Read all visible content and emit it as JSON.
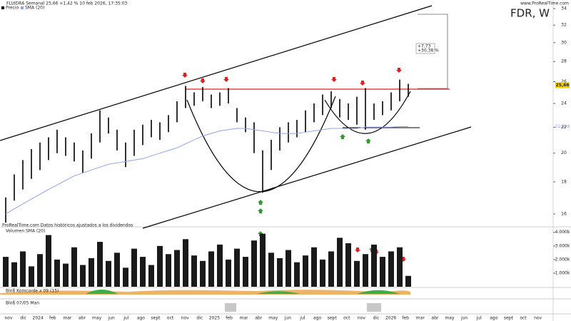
{
  "header": {
    "title": "FLUIDRA Semanal 25,66 +1,42 % 10 feb 2026, 17:35:03",
    "site": "www.ProRealTime.com",
    "symbol": "FDR, W",
    "legend_price": "Precio",
    "legend_sma": "SMA (20)",
    "watermark": "ProRealTime.com  Datos históricos ajustados a los dividendos",
    "box_line1": "+7,73",
    "box_line2": "+30,38 %",
    "ind1_title": "Bloß Komcorde x 09 (15)",
    "ind2_title": "Bloß 07/05 Man",
    "time_axis": [
      "nov",
      "dic",
      "2024",
      "feb",
      "mar",
      "abr",
      "may",
      "jun",
      "jul",
      "ago",
      "sept",
      "oct",
      "nov",
      "dic",
      "2025",
      "feb",
      "mar",
      "abr",
      "may",
      "jun",
      "jul",
      "ago",
      "sept",
      "oct",
      "nov",
      "dic",
      "2026",
      "feb",
      "mar",
      "abr",
      "may",
      "jun",
      "jul",
      "ago",
      "sept",
      "oct",
      "nov"
    ]
  },
  "chart_data": [
    {
      "type": "hilo",
      "log_scale": true,
      "color": "#000000",
      "sma_color": "#8fa3e8",
      "low": [
        15.5,
        16.8,
        17.5,
        18.2,
        18.8,
        19.5,
        20.0,
        19.8,
        19.4,
        18.6,
        19.6,
        20.8,
        21.5,
        20.2,
        19.0,
        19.8,
        20.6,
        21.2,
        21.0,
        21.6,
        22.4,
        23.6,
        23.8,
        24.2,
        23.6,
        23.8,
        24.0,
        22.4,
        21.6,
        20.0,
        17.3,
        18.8,
        20.2,
        20.8,
        21.2,
        21.6,
        22.4,
        23.0,
        23.6,
        22.8,
        22.6,
        22.2,
        21.8,
        22.6,
        23.0,
        23.4,
        24.2,
        24.6
      ],
      "high": [
        17.0,
        18.5,
        19.5,
        20.3,
        20.8,
        21.2,
        21.8,
        21.2,
        20.8,
        20.2,
        21.5,
        23.4,
        22.8,
        21.8,
        20.8,
        21.8,
        22.2,
        22.6,
        22.4,
        23.0,
        24.2,
        25.6,
        25.0,
        25.5,
        24.8,
        25.0,
        25.4,
        23.6,
        22.8,
        22.4,
        20.2,
        21.0,
        22.0,
        22.4,
        22.6,
        23.4,
        24.0,
        24.8,
        25.1,
        24.4,
        24.0,
        24.6,
        25.4,
        24.0,
        24.2,
        25.0,
        26.2,
        25.8
      ],
      "sma": [
        16.0,
        16.3,
        16.6,
        16.9,
        17.2,
        17.5,
        17.8,
        18.1,
        18.4,
        18.6,
        18.8,
        19.0,
        19.2,
        19.3,
        19.4,
        19.5,
        19.6,
        19.8,
        20.0,
        20.2,
        20.4,
        20.7,
        21.0,
        21.3,
        21.5,
        21.7,
        21.8,
        21.9,
        21.9,
        21.8,
        21.7,
        21.6,
        21.5,
        21.5,
        21.5,
        21.6,
        21.7,
        21.8,
        21.9,
        21.9,
        21.9,
        21.9,
        22.0,
        22.0,
        22.0,
        22.0,
        22.05,
        22.048
      ],
      "sma_label": "22,048",
      "last_price": 25.66,
      "last_price_label": "25,66",
      "ylim": [
        15.3,
        35
      ],
      "yticks": [
        16,
        18,
        20,
        22,
        24,
        26,
        28,
        30,
        32,
        34
      ]
    },
    {
      "type": "bar",
      "title": "Volumen",
      "legend": "SMA (20)",
      "color": "#1a1a1a",
      "values": [
        2200,
        1800,
        2600,
        1500,
        2400,
        3800,
        2000,
        1700,
        2900,
        1600,
        2100,
        3300,
        1900,
        2500,
        1400,
        2800,
        2200,
        1600,
        3000,
        2400,
        2700,
        3500,
        2300,
        1900,
        2600,
        3100,
        2000,
        2800,
        2200,
        3400,
        3900,
        2500,
        2100,
        2700,
        1800,
        2300,
        2900,
        2000,
        2600,
        3600,
        3200,
        1900,
        2400,
        3100,
        2200,
        2600,
        2900,
        800
      ],
      "ylim": [
        0,
        4300
      ],
      "yticks": [
        {
          "value": 1000,
          "label": "1.000k"
        },
        {
          "value": 2000,
          "label": "2.000k"
        },
        {
          "value": 3000,
          "label": "3.000k"
        },
        {
          "value": 4000,
          "label": "4.000k"
        }
      ]
    }
  ]
}
